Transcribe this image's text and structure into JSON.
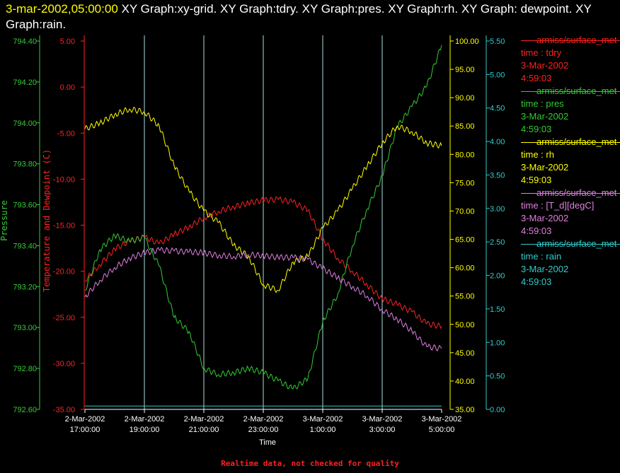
{
  "header": {
    "timestamp": "3-mar-2002,05:00:00",
    "graphs": " XY Graph:xy-grid.  XY Graph:tdry.  XY Graph:pres.  XY Graph:rh.  XY Graph: dewpoint.  XY Graph:rain."
  },
  "footer": "Realtime data, not checked for quality",
  "colors": {
    "pres": "#33cc33",
    "temp": "#ff2222",
    "rh": "#ffff00",
    "rain": "#33cccc",
    "dew": "#e080e0",
    "grid": "#aadddd"
  },
  "chart_data": {
    "type": "line",
    "xlabel": "Time",
    "x_ticks": [
      [
        "2-Mar-2002",
        "17:00:00"
      ],
      [
        "2-Mar-2002",
        "19:00:00"
      ],
      [
        "2-Mar-2002",
        "21:00:00"
      ],
      [
        "2-Mar-2002",
        "23:00:00"
      ],
      [
        "3-Mar-2002",
        "1:00:00"
      ],
      [
        "3-Mar-2002",
        "3:00:00"
      ],
      [
        "3-Mar-2002",
        "5:00:00"
      ]
    ],
    "xlim": [
      "2-Mar-2002 17:00",
      "3-Mar-2002 05:00"
    ],
    "axes": {
      "pressure": {
        "label": "Pressure",
        "ylim": [
          792.6,
          794.4
        ],
        "ticks": [
          "792.60",
          "792.80",
          "793.00",
          "793.20",
          "793.40",
          "793.60",
          "793.80",
          "794.00",
          "794.20",
          "794.40"
        ]
      },
      "temperature": {
        "label": "Temperature and Dewpoint (C)",
        "ylim": [
          -35,
          5
        ],
        "ticks": [
          "-35.00",
          "-30.00",
          "-25.00",
          "-20.00",
          "-15.00",
          "-10.00",
          "-5.00",
          "0.00",
          "5.00"
        ]
      },
      "rh": {
        "ylim": [
          35,
          100
        ],
        "ticks": [
          "35.00",
          "40.00",
          "45.00",
          "50.00",
          "55.00",
          "60.00",
          "65.00",
          "70.00",
          "75.00",
          "80.00",
          "85.00",
          "90.00",
          "95.00",
          "100.00"
        ]
      },
      "rain": {
        "ylim": [
          0,
          5.5
        ],
        "ticks": [
          "0.00",
          "0.50",
          "1.00",
          "1.50",
          "2.00",
          "2.50",
          "3.00",
          "3.50",
          "4.00",
          "4.50",
          "5.00",
          "5.50"
        ]
      }
    },
    "series": [
      {
        "key": "tdry",
        "axis": "temperature",
        "x": [
          17,
          17.5,
          18,
          18.5,
          19,
          19.5,
          20,
          20.5,
          21,
          21.5,
          22,
          22.5,
          23,
          23.5,
          24,
          24.5,
          25,
          25.5,
          26,
          26.5,
          27,
          27.5,
          28,
          28.5,
          29
        ],
        "values": [
          -21,
          -19.3,
          -17.6,
          -16.7,
          -16.3,
          -17,
          -16,
          -15.2,
          -14.2,
          -13.5,
          -13,
          -12.6,
          -12.3,
          -12.2,
          -12.5,
          -13.4,
          -16.5,
          -18.6,
          -20,
          -21.5,
          -23,
          -23.6,
          -24.4,
          -25.7,
          -26
        ]
      },
      {
        "key": "pres",
        "axis": "pressure",
        "x": [
          17,
          17.5,
          18,
          18.5,
          19,
          19.5,
          20,
          20.5,
          21,
          21.5,
          22,
          22.5,
          23,
          23.5,
          24,
          24.5,
          25,
          25.5,
          26,
          26.5,
          27,
          27.5,
          28,
          28.5,
          29
        ],
        "values": [
          793.18,
          793.38,
          793.45,
          793.42,
          793.44,
          793.3,
          793.05,
          792.98,
          792.8,
          792.77,
          792.78,
          792.8,
          792.78,
          792.74,
          792.7,
          792.75,
          793.03,
          793.16,
          793.4,
          793.58,
          793.74,
          793.98,
          794.08,
          794.18,
          794.38
        ]
      },
      {
        "key": "rh",
        "axis": "rh",
        "x": [
          17,
          17.5,
          18,
          18.5,
          19,
          19.5,
          20,
          20.5,
          21,
          21.5,
          22,
          22.5,
          23,
          23.5,
          24,
          24.5,
          25,
          25.5,
          26,
          26.5,
          27,
          27.5,
          28,
          28.5,
          29
        ],
        "values": [
          84.5,
          85.5,
          87,
          88,
          87.5,
          85,
          78,
          73.5,
          70,
          68,
          64,
          62,
          57,
          56,
          61,
          62,
          67,
          70,
          74,
          78,
          82,
          85,
          84,
          82,
          81.5
        ]
      },
      {
        "key": "dewpoint",
        "axis": "temperature",
        "x": [
          17,
          17.5,
          18,
          18.5,
          19,
          19.5,
          20,
          20.5,
          21,
          21.5,
          22,
          22.5,
          23,
          23.5,
          24,
          24.5,
          25,
          25.5,
          26,
          26.5,
          27,
          27.5,
          28,
          28.5,
          29
        ],
        "values": [
          -22.8,
          -21,
          -19.6,
          -18.6,
          -18,
          -17.7,
          -17.8,
          -17.9,
          -18,
          -18.3,
          -18.4,
          -18.2,
          -18.3,
          -18.5,
          -18.5,
          -18.7,
          -19.7,
          -20.7,
          -21.7,
          -22.7,
          -24.2,
          -25.2,
          -26.5,
          -28.2,
          -28.4
        ]
      },
      {
        "key": "rain",
        "axis": "rain",
        "x": [
          17,
          29
        ],
        "values": [
          0.05,
          0.05
        ]
      }
    ]
  },
  "legend": [
    {
      "name": "armiss/surface_met",
      "lines": [
        "time : tdry",
        "3-Mar-2002",
        "4:59:03"
      ],
      "color": "#ff2222"
    },
    {
      "name": "armiss/surface_met",
      "lines": [
        "time : pres",
        "3-Mar-2002",
        "4:59:03"
      ],
      "color": "#33cc33"
    },
    {
      "name": "armiss/surface_met",
      "lines": [
        "time : rh",
        "3-Mar-2002",
        "4:59:03"
      ],
      "color": "#ffff00"
    },
    {
      "name": "armiss/surface_met",
      "lines": [
        "time : [T_d][degC]",
        "3-Mar-2002",
        "4:59:03"
      ],
      "color": "#e080e0"
    },
    {
      "name": "armiss/surface_met",
      "lines": [
        "time : rain",
        "3-Mar-2002",
        "4:59:03"
      ],
      "color": "#33cccc"
    }
  ]
}
